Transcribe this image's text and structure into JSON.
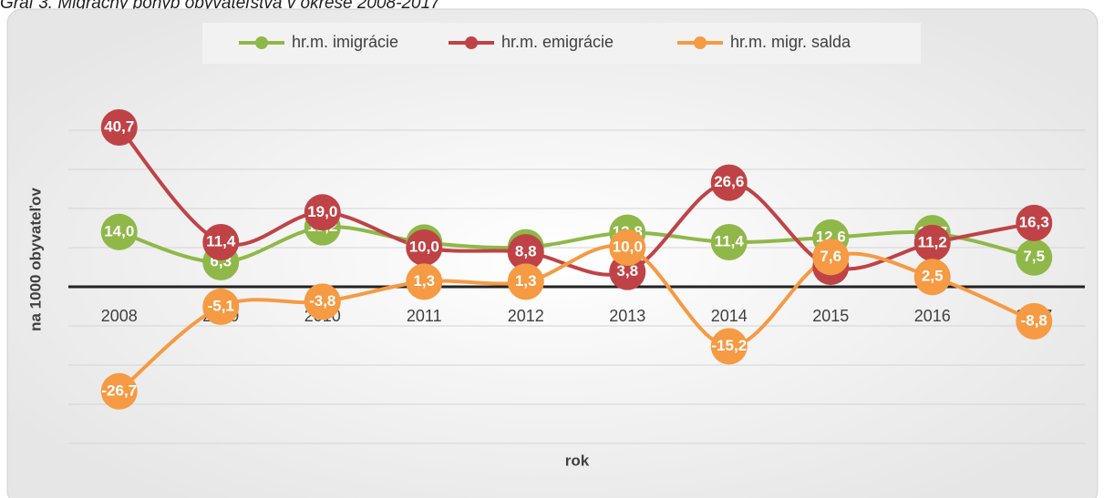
{
  "chart_data": {
    "type": "line",
    "title": "Graf 3. Migračný pohyb obyvateľstva v okrese 2008-2017",
    "x_label": "rok",
    "y_label": "na 1000 obyvateľov",
    "categories": [
      "2008",
      "2009",
      "2010",
      "2011",
      "2012",
      "2013",
      "2014",
      "2015",
      "2016",
      "2017"
    ],
    "series": [
      {
        "name": "hr.m. imigrácie",
        "color": "#8fb849",
        "values": [
          14.0,
          6.3,
          15.2,
          11.3,
          10.1,
          13.8,
          11.4,
          12.6,
          13.7,
          7.5
        ],
        "value_labels": [
          "14,0",
          "6,3",
          "15,2",
          "11,3",
          "10,1",
          "13,8",
          "11,4",
          "12,6",
          "13,7",
          "7,5"
        ]
      },
      {
        "name": "hr.m. emigrácie",
        "color": "#bf4346",
        "values": [
          40.7,
          11.4,
          19.0,
          10.0,
          8.8,
          3.8,
          26.6,
          5.1,
          11.2,
          16.3
        ],
        "value_labels": [
          "40,7",
          "11,4",
          "19,0",
          "10,0",
          "8,8",
          "3,8",
          "26,6",
          "5,1",
          "11,2",
          "16,3"
        ]
      },
      {
        "name": "hr.m. migr. salda",
        "color": "#f69a43",
        "values": [
          -26.7,
          -5.1,
          -3.8,
          1.3,
          1.3,
          10.0,
          -15.2,
          7.6,
          2.5,
          -8.8
        ],
        "value_labels": [
          "-26,7",
          "-5,1",
          "-3,8",
          "1,3",
          "1,3",
          "10,0",
          "-15,2",
          "7,6",
          "2,5",
          "-8,8"
        ]
      }
    ],
    "ylim": [
      -40,
      50
    ],
    "yticks": [
      -40,
      -30,
      -20,
      -10,
      0,
      10,
      20,
      30,
      40
    ],
    "grid": true
  }
}
